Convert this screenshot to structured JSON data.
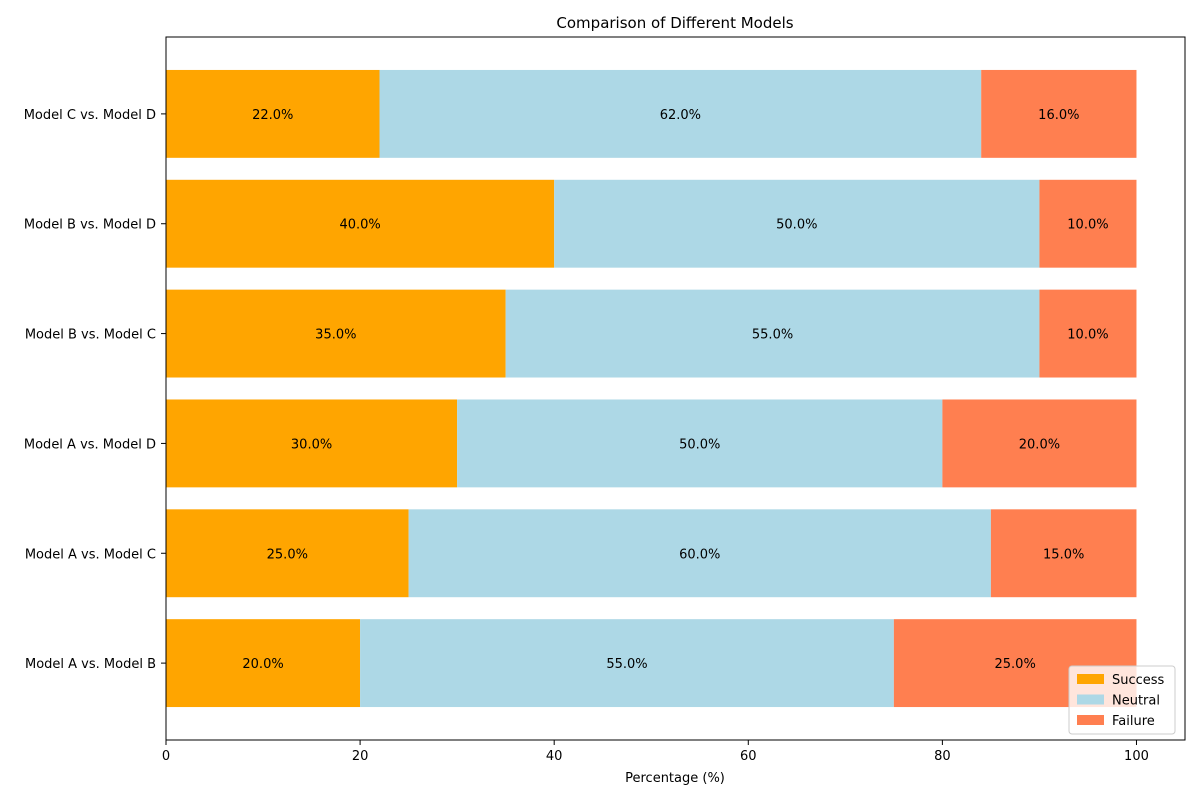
{
  "chart_data": {
    "type": "bar",
    "orientation": "horizontal",
    "stacked": true,
    "title": "Comparison of Different Models",
    "xlabel": "Percentage (%)",
    "ylabel": "",
    "xlim": [
      0,
      105
    ],
    "x_ticks": [
      "0",
      "20",
      "40",
      "60",
      "80",
      "100"
    ],
    "categories": [
      "Model A vs. Model B",
      "Model A vs. Model C",
      "Model A vs. Model D",
      "Model B vs. Model C",
      "Model B vs. Model D",
      "Model C vs. Model D"
    ],
    "series": [
      {
        "name": "Success",
        "color": "#ffa500",
        "values": [
          20,
          25,
          30,
          35,
          40,
          22
        ],
        "labels": [
          "20.0%",
          "25.0%",
          "30.0%",
          "35.0%",
          "40.0%",
          "22.0%"
        ]
      },
      {
        "name": "Neutral",
        "color": "#add8e6",
        "values": [
          55,
          60,
          50,
          55,
          50,
          62
        ],
        "labels": [
          "55.0%",
          "60.0%",
          "50.0%",
          "55.0%",
          "50.0%",
          "62.0%"
        ]
      },
      {
        "name": "Failure",
        "color": "#ff7f50",
        "values": [
          25,
          15,
          20,
          10,
          10,
          16
        ],
        "labels": [
          "25.0%",
          "15.0%",
          "20.0%",
          "10.0%",
          "10.0%",
          "16.0%"
        ]
      }
    ],
    "legend_position": "bottom-right",
    "grid": false
  }
}
